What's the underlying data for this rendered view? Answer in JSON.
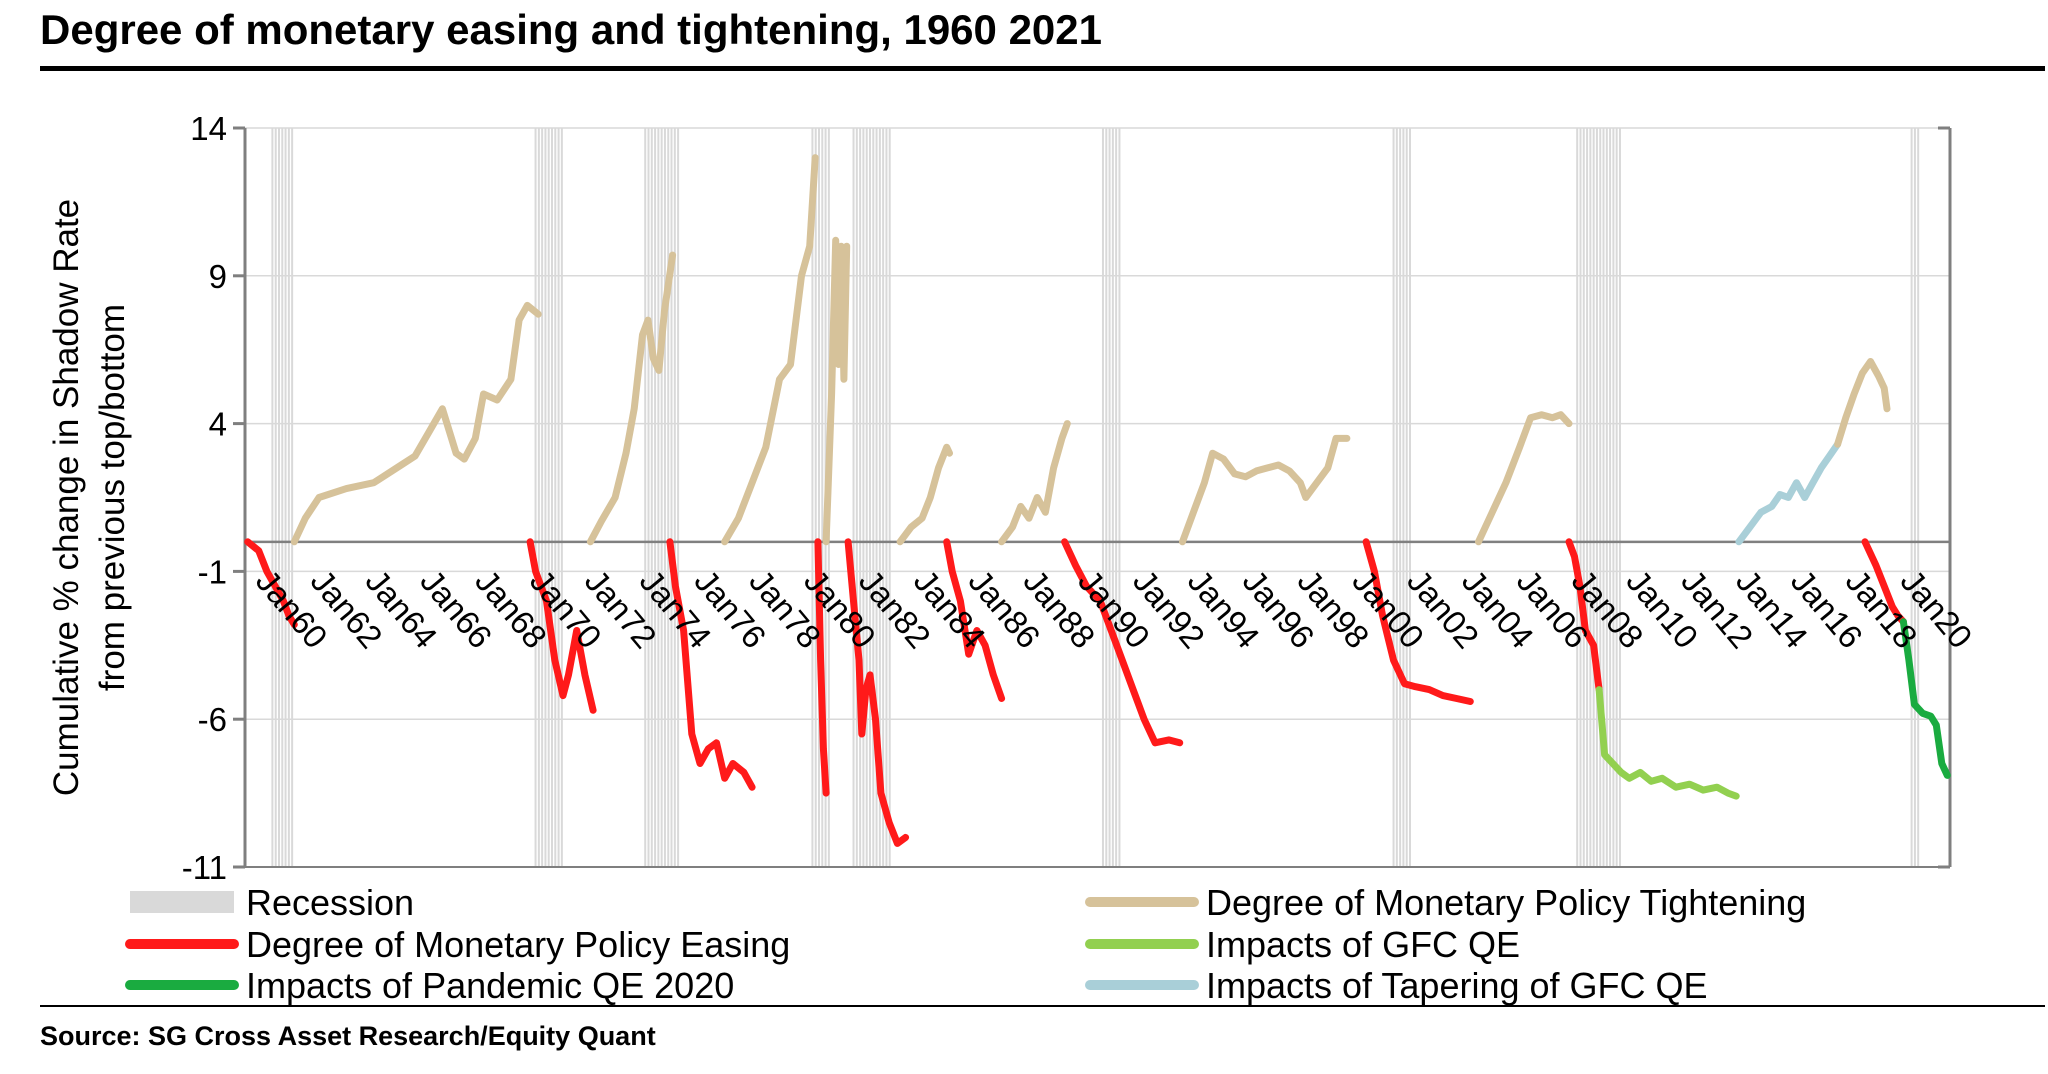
{
  "page": {
    "title": "Degree of monetary easing and tightening, 1960 2021",
    "source": "Source: SG Cross Asset Research/Equity Quant"
  },
  "colors": {
    "recession": "#d9d9d9",
    "tightening": "#d6c29a",
    "easing": "#ff1a1a",
    "gfc_qe": "#92d050",
    "pandemic_qe": "#1aab40",
    "tapering": "#a9cfd8",
    "grid": "#d9d9d9",
    "axis": "#7f7f7f"
  },
  "chart_data": {
    "type": "line",
    "title": "Degree of monetary easing and tightening, 1960 2021",
    "ylabel": [
      "Cumulative % change in Shadow Rate",
      "from previous top/bottom"
    ],
    "xlabel": "",
    "ylim": [
      -11,
      14
    ],
    "yticks": [
      14,
      9,
      4,
      -1,
      -6,
      -11
    ],
    "xlim": [
      1959.3,
      2021.5
    ],
    "xticks": [
      "Jan60",
      "Jan62",
      "Jan64",
      "Jan66",
      "Jan68",
      "Jan70",
      "Jan72",
      "Jan74",
      "Jan76",
      "Jan78",
      "Jan80",
      "Jan82",
      "Jan84",
      "Jan86",
      "Jan88",
      "Jan90",
      "Jan92",
      "Jan94",
      "Jan96",
      "Jan98",
      "Jan00",
      "Jan02",
      "Jan04",
      "Jan06",
      "Jan08",
      "Jan10",
      "Jan12",
      "Jan14",
      "Jan16",
      "Jan18",
      "Jan20"
    ],
    "grid": true,
    "legend_position": "bottom",
    "legend": [
      {
        "key": "recession",
        "label": "Recession"
      },
      {
        "key": "tightening",
        "label": "Degree of Monetary Policy Tightening"
      },
      {
        "key": "easing",
        "label": "Degree of Monetary Policy Easing"
      },
      {
        "key": "gfc_qe",
        "label": "Impacts of GFC QE"
      },
      {
        "key": "pandemic_qe",
        "label": "Impacts of Pandemic QE 2020"
      },
      {
        "key": "tapering",
        "label": "Impacts of Tapering of GFC QE"
      }
    ],
    "recessions": [
      [
        1960.3,
        1961.1
      ],
      [
        1969.9,
        1970.9
      ],
      [
        1973.9,
        1975.2
      ],
      [
        1980.0,
        1980.6
      ],
      [
        1981.5,
        1982.9
      ],
      [
        1990.6,
        1991.2
      ],
      [
        2001.2,
        2001.9
      ],
      [
        2007.9,
        2009.5
      ],
      [
        2020.1,
        2020.4
      ]
    ],
    "series": [
      {
        "name": "easing",
        "points": [
          [
            1959.4,
            0
          ],
          [
            1959.8,
            -0.3
          ],
          [
            1960.1,
            -1.0
          ],
          [
            1960.4,
            -1.5
          ],
          [
            1960.7,
            -2.0
          ],
          [
            1960.9,
            -2.5
          ],
          [
            1961.1,
            -2.8
          ]
        ]
      },
      {
        "name": "tightening",
        "points": [
          [
            1961.1,
            0
          ],
          [
            1961.5,
            0.8
          ],
          [
            1962.0,
            1.5
          ],
          [
            1963.0,
            1.8
          ],
          [
            1964.0,
            2.0
          ],
          [
            1965.0,
            2.6
          ],
          [
            1965.5,
            2.9
          ],
          [
            1966.0,
            3.7
          ],
          [
            1966.5,
            4.5
          ],
          [
            1967.0,
            3.0
          ],
          [
            1967.3,
            2.8
          ],
          [
            1967.7,
            3.5
          ],
          [
            1968.0,
            5.0
          ],
          [
            1968.5,
            4.8
          ],
          [
            1969.0,
            5.5
          ],
          [
            1969.3,
            7.5
          ],
          [
            1969.6,
            8.0
          ],
          [
            1970.0,
            7.7
          ]
        ]
      },
      {
        "name": "easing",
        "points": [
          [
            1969.7,
            0
          ],
          [
            1969.9,
            -1.0
          ],
          [
            1970.3,
            -2.0
          ],
          [
            1970.6,
            -4.0
          ],
          [
            1970.9,
            -5.2
          ],
          [
            1971.1,
            -4.5
          ],
          [
            1971.4,
            -3.0
          ],
          [
            1971.7,
            -4.5
          ],
          [
            1972.0,
            -5.7
          ]
        ]
      },
      {
        "name": "tightening",
        "points": [
          [
            1971.9,
            0
          ],
          [
            1972.3,
            0.7
          ],
          [
            1972.8,
            1.5
          ],
          [
            1973.2,
            3.0
          ],
          [
            1973.5,
            4.5
          ],
          [
            1973.8,
            7.0
          ],
          [
            1974.0,
            7.5
          ],
          [
            1974.2,
            6.2
          ],
          [
            1974.4,
            5.8
          ],
          [
            1974.6,
            7.8
          ],
          [
            1974.9,
            9.7
          ]
        ]
      },
      {
        "name": "easing",
        "points": [
          [
            1974.8,
            0
          ],
          [
            1975.0,
            -1.5
          ],
          [
            1975.3,
            -3.0
          ],
          [
            1975.6,
            -6.5
          ],
          [
            1975.9,
            -7.5
          ],
          [
            1976.2,
            -7.0
          ],
          [
            1976.5,
            -6.8
          ],
          [
            1976.8,
            -8.0
          ],
          [
            1977.1,
            -7.5
          ],
          [
            1977.5,
            -7.8
          ],
          [
            1977.8,
            -8.3
          ]
        ]
      },
      {
        "name": "tightening",
        "points": [
          [
            1976.8,
            0
          ],
          [
            1977.3,
            0.8
          ],
          [
            1977.8,
            2.0
          ],
          [
            1978.3,
            3.2
          ],
          [
            1978.8,
            5.5
          ],
          [
            1979.2,
            6.0
          ],
          [
            1979.6,
            9.0
          ],
          [
            1979.9,
            10.0
          ],
          [
            1980.1,
            13.0
          ]
        ]
      },
      {
        "name": "easing",
        "points": [
          [
            1980.2,
            0
          ],
          [
            1980.3,
            -4.0
          ],
          [
            1980.4,
            -7.0
          ],
          [
            1980.5,
            -8.5
          ]
        ]
      },
      {
        "name": "tightening",
        "points": [
          [
            1980.5,
            0
          ],
          [
            1980.7,
            5.0
          ],
          [
            1980.85,
            10.2
          ],
          [
            1980.95,
            6.0
          ],
          [
            1981.05,
            10.0
          ],
          [
            1981.15,
            5.5
          ],
          [
            1981.25,
            10.0
          ]
        ]
      },
      {
        "name": "easing",
        "points": [
          [
            1981.3,
            0
          ],
          [
            1981.5,
            -2.0
          ],
          [
            1981.7,
            -4.0
          ],
          [
            1981.8,
            -6.5
          ],
          [
            1981.95,
            -5.0
          ],
          [
            1982.1,
            -4.5
          ],
          [
            1982.3,
            -6.0
          ],
          [
            1982.5,
            -8.5
          ],
          [
            1982.8,
            -9.5
          ],
          [
            1983.1,
            -10.2
          ],
          [
            1983.4,
            -10.0
          ]
        ]
      },
      {
        "name": "tightening",
        "points": [
          [
            1983.2,
            0
          ],
          [
            1983.6,
            0.5
          ],
          [
            1984.0,
            0.8
          ],
          [
            1984.3,
            1.5
          ],
          [
            1984.6,
            2.5
          ],
          [
            1984.9,
            3.2
          ],
          [
            1985.0,
            3.0
          ]
        ]
      },
      {
        "name": "easing",
        "points": [
          [
            1984.9,
            0
          ],
          [
            1985.1,
            -1.0
          ],
          [
            1985.4,
            -2.0
          ],
          [
            1985.7,
            -3.8
          ],
          [
            1986.0,
            -3.0
          ],
          [
            1986.3,
            -3.5
          ],
          [
            1986.6,
            -4.5
          ],
          [
            1986.9,
            -5.3
          ]
        ]
      },
      {
        "name": "tightening",
        "points": [
          [
            1986.9,
            0
          ],
          [
            1987.3,
            0.5
          ],
          [
            1987.6,
            1.2
          ],
          [
            1987.9,
            0.8
          ],
          [
            1988.2,
            1.5
          ],
          [
            1988.5,
            1.0
          ],
          [
            1988.8,
            2.5
          ],
          [
            1989.1,
            3.5
          ],
          [
            1989.3,
            4.0
          ]
        ]
      },
      {
        "name": "easing",
        "points": [
          [
            1989.2,
            0
          ],
          [
            1989.6,
            -0.8
          ],
          [
            1990.0,
            -1.5
          ],
          [
            1990.5,
            -2.0
          ],
          [
            1990.9,
            -3.0
          ],
          [
            1991.3,
            -4.0
          ],
          [
            1991.7,
            -5.0
          ],
          [
            1992.1,
            -6.0
          ],
          [
            1992.5,
            -6.8
          ],
          [
            1993.0,
            -6.7
          ],
          [
            1993.4,
            -6.8
          ]
        ]
      },
      {
        "name": "tightening",
        "points": [
          [
            1993.5,
            0
          ],
          [
            1993.9,
            1.0
          ],
          [
            1994.3,
            2.0
          ],
          [
            1994.6,
            3.0
          ],
          [
            1995.0,
            2.8
          ],
          [
            1995.4,
            2.3
          ],
          [
            1995.8,
            2.2
          ],
          [
            1996.2,
            2.4
          ],
          [
            1996.6,
            2.5
          ],
          [
            1997.0,
            2.6
          ],
          [
            1997.4,
            2.4
          ],
          [
            1997.8,
            2.0
          ],
          [
            1998.0,
            1.5
          ],
          [
            1998.4,
            2.0
          ],
          [
            1998.8,
            2.5
          ],
          [
            1999.1,
            3.5
          ],
          [
            1999.5,
            3.5
          ]
        ]
      },
      {
        "name": "easing",
        "points": [
          [
            2000.2,
            0
          ],
          [
            2000.5,
            -1.0
          ],
          [
            2000.8,
            -2.5
          ],
          [
            2001.2,
            -4.0
          ],
          [
            2001.6,
            -4.8
          ],
          [
            2002.0,
            -4.9
          ],
          [
            2002.5,
            -5.0
          ],
          [
            2003.0,
            -5.2
          ],
          [
            2003.5,
            -5.3
          ],
          [
            2004.0,
            -5.4
          ]
        ]
      },
      {
        "name": "tightening",
        "points": [
          [
            2004.3,
            0
          ],
          [
            2004.8,
            1.0
          ],
          [
            2005.3,
            2.0
          ],
          [
            2005.8,
            3.2
          ],
          [
            2006.2,
            4.2
          ],
          [
            2006.6,
            4.3
          ],
          [
            2007.0,
            4.2
          ],
          [
            2007.3,
            4.3
          ],
          [
            2007.6,
            4.0
          ]
        ]
      },
      {
        "name": "easing",
        "points": [
          [
            2007.6,
            0
          ],
          [
            2007.8,
            -0.5
          ],
          [
            2008.0,
            -1.5
          ],
          [
            2008.2,
            -3.0
          ],
          [
            2008.5,
            -3.5
          ],
          [
            2008.7,
            -5.0
          ]
        ]
      },
      {
        "name": "gfc_qe",
        "points": [
          [
            2008.7,
            -5.0
          ],
          [
            2008.9,
            -7.2
          ],
          [
            2009.2,
            -7.5
          ],
          [
            2009.5,
            -7.8
          ],
          [
            2009.8,
            -8.0
          ],
          [
            2010.2,
            -7.8
          ],
          [
            2010.6,
            -8.1
          ],
          [
            2011.0,
            -8.0
          ],
          [
            2011.5,
            -8.3
          ],
          [
            2012.0,
            -8.2
          ],
          [
            2012.5,
            -8.4
          ],
          [
            2013.0,
            -8.3
          ],
          [
            2013.4,
            -8.5
          ],
          [
            2013.7,
            -8.6
          ]
        ]
      },
      {
        "name": "tapering",
        "points": [
          [
            2013.8,
            0
          ],
          [
            2014.2,
            0.5
          ],
          [
            2014.6,
            1.0
          ],
          [
            2015.0,
            1.2
          ],
          [
            2015.3,
            1.6
          ],
          [
            2015.6,
            1.5
          ],
          [
            2015.9,
            2.0
          ],
          [
            2016.2,
            1.5
          ],
          [
            2016.5,
            2.0
          ],
          [
            2016.8,
            2.5
          ],
          [
            2017.1,
            2.9
          ],
          [
            2017.4,
            3.3
          ]
        ]
      },
      {
        "name": "tightening",
        "points": [
          [
            2017.4,
            3.3
          ],
          [
            2017.7,
            4.2
          ],
          [
            2018.0,
            5.0
          ],
          [
            2018.3,
            5.7
          ],
          [
            2018.6,
            6.1
          ],
          [
            2018.9,
            5.6
          ],
          [
            2019.1,
            5.2
          ],
          [
            2019.2,
            4.5
          ]
        ]
      },
      {
        "name": "easing",
        "points": [
          [
            2018.4,
            0
          ],
          [
            2018.8,
            -0.8
          ],
          [
            2019.1,
            -1.5
          ],
          [
            2019.4,
            -2.2
          ],
          [
            2019.6,
            -2.5
          ],
          [
            2019.8,
            -2.7
          ]
        ]
      },
      {
        "name": "pandemic_qe",
        "points": [
          [
            2019.8,
            -2.7
          ],
          [
            2020.0,
            -4.0
          ],
          [
            2020.2,
            -5.5
          ],
          [
            2020.5,
            -5.8
          ],
          [
            2020.8,
            -5.9
          ],
          [
            2021.0,
            -6.2
          ],
          [
            2021.2,
            -7.5
          ],
          [
            2021.4,
            -7.9
          ]
        ]
      }
    ]
  }
}
